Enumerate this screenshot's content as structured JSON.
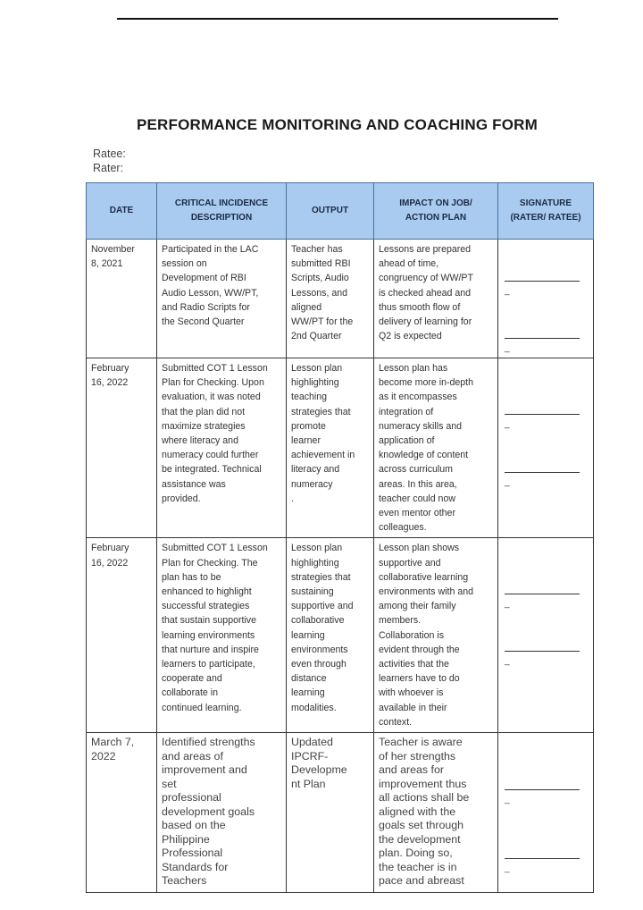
{
  "title": "PERFORMANCE MONITORING AND COACHING FORM",
  "ratee_label": "Ratee:",
  "rater_label": "Rater:",
  "headers": [
    "DATE",
    "CRITICAL INCIDENCE\nDESCRIPTION",
    "OUTPUT",
    "IMPACT ON JOB/\nACTION PLAN",
    "SIGNATURE\n(RATER/ RATEE)"
  ],
  "rows": [
    {
      "date": "November\n8, 2021",
      "description": "Participated in the LAC\nsession on\nDevelopment of RBI\nAudio Lesson, WW/PT,\nand Radio Scripts for\nthe Second Quarter",
      "output": "Teacher has\nsubmitted RBI\nScripts, Audio\nLessons, and\naligned\nWW/PT for the\n2nd Quarter",
      "impact": "Lessons are prepared\nahead of time,\ncongruency of WW/PT\nis checked ahead and\nthus smooth flow of\ndelivery of learning for\nQ2 is expected"
    },
    {
      "date": "February\n16, 2022",
      "description": "Submitted COT 1 Lesson\nPlan for Checking. Upon\nevaluation, it was noted\nthat the plan did not\nmaximize strategies\nwhere literacy and\nnumeracy could further\nbe integrated. Technical\nassistance was\nprovided.",
      "output": "Lesson plan\nhighlighting\nteaching\nstrategies that\npromote\nlearner\nachievement in\nliteracy and\nnumeracy\n.",
      "impact": "Lesson plan has\nbecome more in-depth\nas it encompasses\nintegration of\nnumeracy skills and\napplication of\nknowledge of content\nacross curriculum\nareas. In this area,\nteacher could now\neven mentor other\ncolleagues."
    },
    {
      "date": "February\n16, 2022",
      "description": "Submitted COT 1 Lesson\nPlan for Checking. The\nplan has to be\nenhanced to highlight\nsuccessful strategies\nthat sustain supportive\nlearning environments\nthat nurture and inspire\nlearners to participate,\ncooperate and\ncollaborate in\ncontinued learning.",
      "output": "Lesson plan\nhighlighting\nstrategies that\nsustaining\nsupportive and\ncollaborative\nlearning\nenvironments\neven through\ndistance\nlearning\nmodalities.",
      "impact": "Lesson plan shows\nsupportive and\ncollaborative learning\nenvironments with and\namong their family\nmembers.\nCollaboration is\nevident through the\nactivities that the\nlearners have to do\nwith whoever is\navailable in their\ncontext."
    },
    {
      "date": "March 7,\n2022",
      "description": "Identified strengths\nand areas of\nimprovement and\nset\nprofessional\ndevelopment goals\nbased on the\nPhilippine\nProfessional\nStandards for\nTeachers",
      "output": "Updated\nIPCRF-\nDevelopme\nnt Plan",
      "impact": "Teacher is aware\nof her strengths\nand areas for\nimprovement thus\nall actions shall be\naligned with the\ngoals set through\nthe development\nplan. Doing so,\nthe teacher is in\npace and abreast"
    }
  ],
  "signature_dash": "_"
}
